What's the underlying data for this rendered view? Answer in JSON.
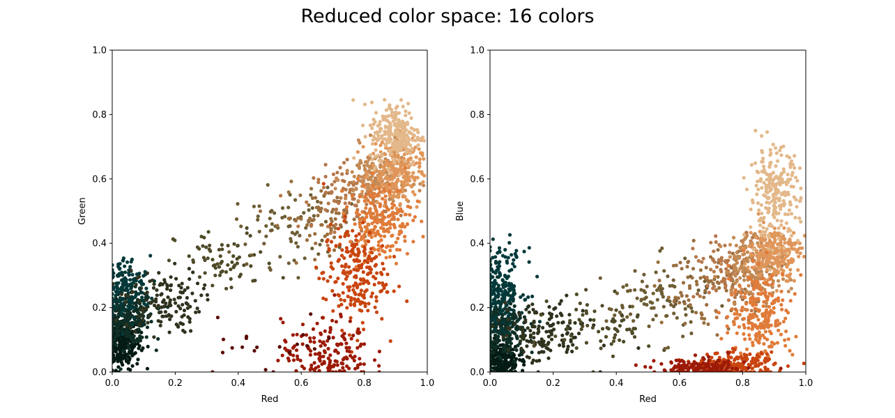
{
  "title": "Reduced color space: 16 colors",
  "palette": [
    "#0f2e25",
    "#04393a",
    "#041a14",
    "#102a1f",
    "#2f331e",
    "#4f4a28",
    "#6e5d34",
    "#9a6e3f",
    "#b5774a",
    "#c38a55",
    "#e0965a",
    "#e3b88a",
    "#e07b39",
    "#c9450f",
    "#9c1a06",
    "#5a0a04"
  ],
  "chart_data": [
    {
      "type": "scatter",
      "title": "",
      "xlabel": "Red",
      "ylabel": "Green",
      "xlim": [
        0,
        1
      ],
      "ylim": [
        0,
        1
      ],
      "xticks": [
        "0.0",
        "0.2",
        "0.4",
        "0.6",
        "0.8",
        "1.0"
      ],
      "yticks": [
        "0.0",
        "0.2",
        "0.4",
        "0.6",
        "0.8",
        "1.0"
      ],
      "grid": false,
      "clusters": [
        {
          "color": "#041a14",
          "center": [
            0.03,
            0.09
          ],
          "spread": [
            0.03,
            0.04
          ],
          "count": 280
        },
        {
          "color": "#0f2e25",
          "center": [
            0.05,
            0.17
          ],
          "spread": [
            0.04,
            0.04
          ],
          "count": 260
        },
        {
          "color": "#04393a",
          "center": [
            0.04,
            0.26
          ],
          "spread": [
            0.04,
            0.05
          ],
          "count": 160
        },
        {
          "color": "#2f331e",
          "center": [
            0.16,
            0.22
          ],
          "spread": [
            0.06,
            0.05
          ],
          "count": 140
        },
        {
          "color": "#4f4a28",
          "center": [
            0.36,
            0.34
          ],
          "spread": [
            0.08,
            0.05
          ],
          "count": 70
        },
        {
          "color": "#6e5d34",
          "center": [
            0.55,
            0.45
          ],
          "spread": [
            0.08,
            0.06
          ],
          "count": 70
        },
        {
          "color": "#9a6e3f",
          "center": [
            0.68,
            0.48
          ],
          "spread": [
            0.07,
            0.05
          ],
          "count": 80
        },
        {
          "color": "#b5774a",
          "center": [
            0.76,
            0.54
          ],
          "spread": [
            0.06,
            0.05
          ],
          "count": 90
        },
        {
          "color": "#c38a55",
          "center": [
            0.84,
            0.6
          ],
          "spread": [
            0.05,
            0.05
          ],
          "count": 180
        },
        {
          "color": "#e0965a",
          "center": [
            0.9,
            0.62
          ],
          "spread": [
            0.04,
            0.05
          ],
          "count": 260
        },
        {
          "color": "#e3b88a",
          "center": [
            0.9,
            0.74
          ],
          "spread": [
            0.04,
            0.05
          ],
          "count": 230
        },
        {
          "color": "#e07b39",
          "center": [
            0.85,
            0.47
          ],
          "spread": [
            0.05,
            0.06
          ],
          "count": 220
        },
        {
          "color": "#c9450f",
          "center": [
            0.77,
            0.3
          ],
          "spread": [
            0.05,
            0.08
          ],
          "count": 220
        },
        {
          "color": "#9c1a06",
          "center": [
            0.68,
            0.06
          ],
          "spread": [
            0.07,
            0.05
          ],
          "count": 170
        },
        {
          "color": "#5a0a04",
          "center": [
            0.5,
            0.08
          ],
          "spread": [
            0.12,
            0.06
          ],
          "count": 20
        }
      ]
    },
    {
      "type": "scatter",
      "title": "",
      "xlabel": "Red",
      "ylabel": "Blue",
      "xlim": [
        0,
        1
      ],
      "ylim": [
        0,
        1
      ],
      "xticks": [
        "0.0",
        "0.2",
        "0.4",
        "0.6",
        "0.8",
        "1.0"
      ],
      "yticks": [
        "0.0",
        "0.2",
        "0.4",
        "0.6",
        "0.8",
        "1.0"
      ],
      "grid": false,
      "clusters": [
        {
          "color": "#041a14",
          "center": [
            0.03,
            0.04
          ],
          "spread": [
            0.03,
            0.03
          ],
          "count": 240
        },
        {
          "color": "#0f2e25",
          "center": [
            0.04,
            0.13
          ],
          "spread": [
            0.04,
            0.05
          ],
          "count": 250
        },
        {
          "color": "#04393a",
          "center": [
            0.03,
            0.26
          ],
          "spread": [
            0.04,
            0.06
          ],
          "count": 220
        },
        {
          "color": "#2f331e",
          "center": [
            0.17,
            0.12
          ],
          "spread": [
            0.07,
            0.05
          ],
          "count": 150
        },
        {
          "color": "#4f4a28",
          "center": [
            0.36,
            0.14
          ],
          "spread": [
            0.08,
            0.05
          ],
          "count": 70
        },
        {
          "color": "#6e5d34",
          "center": [
            0.53,
            0.22
          ],
          "spread": [
            0.08,
            0.06
          ],
          "count": 90
        },
        {
          "color": "#9a6e3f",
          "center": [
            0.68,
            0.26
          ],
          "spread": [
            0.07,
            0.06
          ],
          "count": 90
        },
        {
          "color": "#b5774a",
          "center": [
            0.77,
            0.3
          ],
          "spread": [
            0.06,
            0.06
          ],
          "count": 100
        },
        {
          "color": "#c38a55",
          "center": [
            0.84,
            0.33
          ],
          "spread": [
            0.05,
            0.05
          ],
          "count": 180
        },
        {
          "color": "#e0965a",
          "center": [
            0.9,
            0.37
          ],
          "spread": [
            0.04,
            0.04
          ],
          "count": 240
        },
        {
          "color": "#e3b88a",
          "center": [
            0.9,
            0.55
          ],
          "spread": [
            0.04,
            0.07
          ],
          "count": 240
        },
        {
          "color": "#e07b39",
          "center": [
            0.86,
            0.18
          ],
          "spread": [
            0.05,
            0.07
          ],
          "count": 220
        },
        {
          "color": "#c9450f",
          "center": [
            0.78,
            0.02
          ],
          "spread": [
            0.06,
            0.02
          ],
          "count": 210
        },
        {
          "color": "#9c1a06",
          "center": [
            0.67,
            0.01
          ],
          "spread": [
            0.07,
            0.015
          ],
          "count": 160
        }
      ]
    }
  ]
}
